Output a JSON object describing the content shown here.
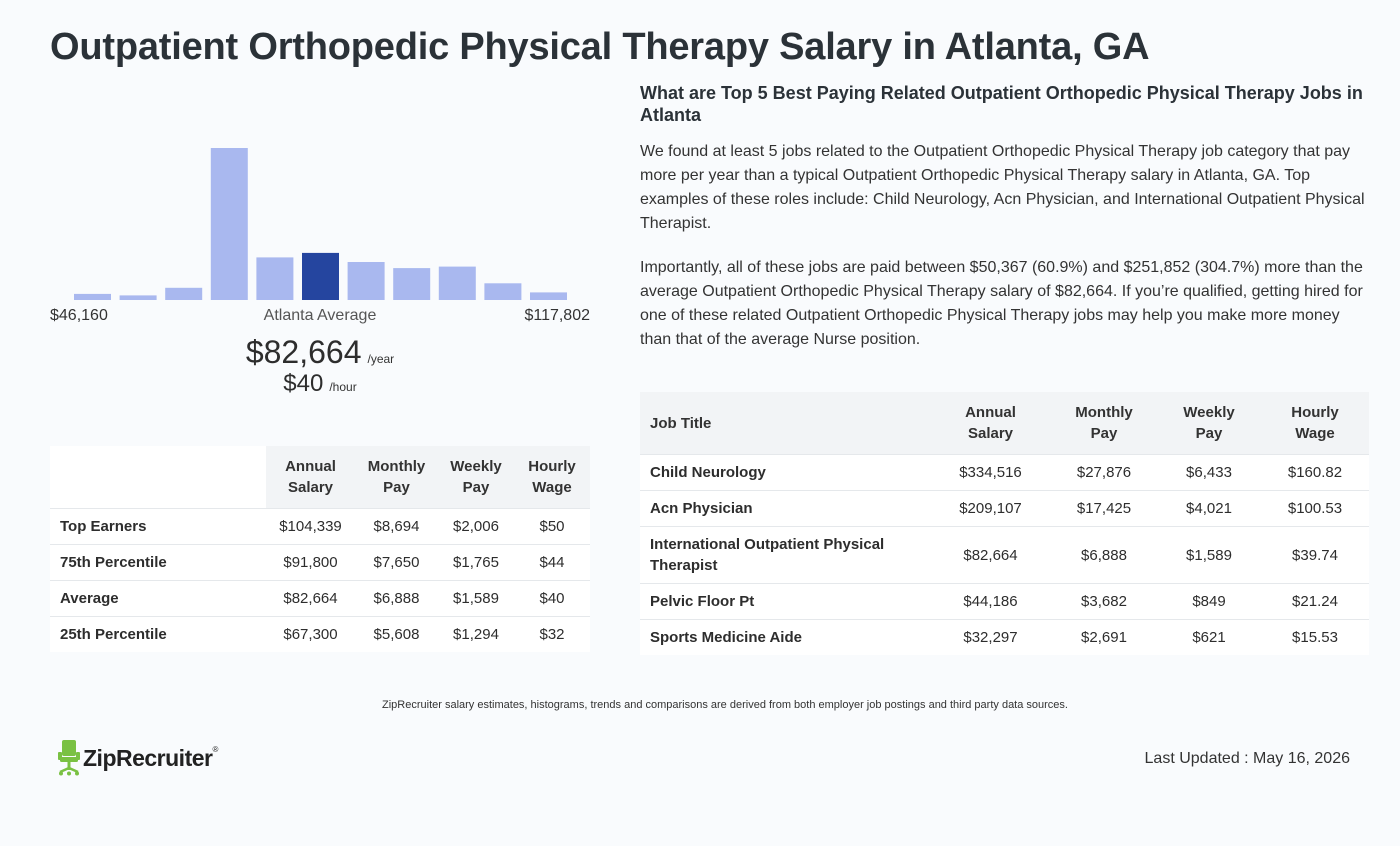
{
  "page": {
    "title": "Outpatient Orthopedic Physical Therapy Salary in Atlanta, GA"
  },
  "histogram": {
    "min_label": "$46,160",
    "avg_label": "Atlanta Average",
    "max_label": "$117,802",
    "bar_color": "#a9b8ef",
    "highlight_color": "#25459f",
    "highlight_index": 5
  },
  "chart_data": {
    "type": "bar",
    "categories": [
      "1",
      "2",
      "3",
      "4",
      "5",
      "6",
      "7",
      "8",
      "9",
      "10",
      "11"
    ],
    "values": [
      4,
      3,
      8,
      100,
      28,
      31,
      25,
      21,
      22,
      11,
      5
    ],
    "title": "",
    "xlabel": "",
    "ylabel": "",
    "ylim": [
      0,
      100
    ]
  },
  "average": {
    "yearly": "$82,664",
    "yearly_unit": "/year",
    "hourly": "$40",
    "hourly_unit": "/hour"
  },
  "percentile_table": {
    "headers": [
      {
        "line1": "Annual",
        "line2": "Salary"
      },
      {
        "line1": "Monthly",
        "line2": "Pay"
      },
      {
        "line1": "Weekly",
        "line2": "Pay"
      },
      {
        "line1": "Hourly",
        "line2": "Wage"
      }
    ],
    "rows": [
      {
        "label": "Top Earners",
        "annual": "$104,339",
        "monthly": "$8,694",
        "weekly": "$2,006",
        "hourly": "$50"
      },
      {
        "label": "75th Percentile",
        "annual": "$91,800",
        "monthly": "$7,650",
        "weekly": "$1,765",
        "hourly": "$44"
      },
      {
        "label": "Average",
        "annual": "$82,664",
        "monthly": "$6,888",
        "weekly": "$1,589",
        "hourly": "$40"
      },
      {
        "label": "25th Percentile",
        "annual": "$67,300",
        "monthly": "$5,608",
        "weekly": "$1,294",
        "hourly": "$32"
      }
    ]
  },
  "related": {
    "heading": "What are Top 5 Best Paying Related Outpatient Orthopedic Physical Therapy Jobs in Atlanta",
    "paragraph1": "We found at least 5 jobs related to the Outpatient Orthopedic Physical Therapy job category that pay more per year than a typical Outpatient Orthopedic Physical Therapy salary in Atlanta, GA. Top examples of these roles include: Child Neurology, Acn Physician, and International Outpatient Physical Therapist.",
    "paragraph2": "Importantly, all of these jobs are paid between $50,367 (60.9%) and $251,852 (304.7%) more than the average Outpatient Orthopedic Physical Therapy salary of $82,664. If you’re qualified, getting hired for one of these related Outpatient Orthopedic Physical Therapy jobs may help you make more money than that of the average Nurse position."
  },
  "jobs_table": {
    "title_header": "Job Title",
    "headers": [
      {
        "line1": "Annual",
        "line2": "Salary"
      },
      {
        "line1": "Monthly",
        "line2": "Pay"
      },
      {
        "line1": "Weekly",
        "line2": "Pay"
      },
      {
        "line1": "Hourly",
        "line2": "Wage"
      }
    ],
    "rows": [
      {
        "title": "Child Neurology",
        "annual": "$334,516",
        "monthly": "$27,876",
        "weekly": "$6,433",
        "hourly": "$160.82"
      },
      {
        "title": "Acn Physician",
        "annual": "$209,107",
        "monthly": "$17,425",
        "weekly": "$4,021",
        "hourly": "$100.53"
      },
      {
        "title_line1": "International Outpatient Physical",
        "title_line2": "Therapist",
        "annual": "$82,664",
        "monthly": "$6,888",
        "weekly": "$1,589",
        "hourly": "$39.74"
      },
      {
        "title": "Pelvic Floor Pt",
        "annual": "$44,186",
        "monthly": "$3,682",
        "weekly": "$849",
        "hourly": "$21.24"
      },
      {
        "title": "Sports Medicine Aide",
        "annual": "$32,297",
        "monthly": "$2,691",
        "weekly": "$621",
        "hourly": "$15.53"
      }
    ]
  },
  "footer": {
    "footnote": "ZipRecruiter salary estimates, histograms, trends and comparisons are derived from both employer job postings and third party data sources.",
    "logo_text": "ZipRecruiter",
    "logo_mark": "®",
    "logo_color": "#7ac143",
    "last_updated": "Last Updated : May 16, 2026"
  }
}
